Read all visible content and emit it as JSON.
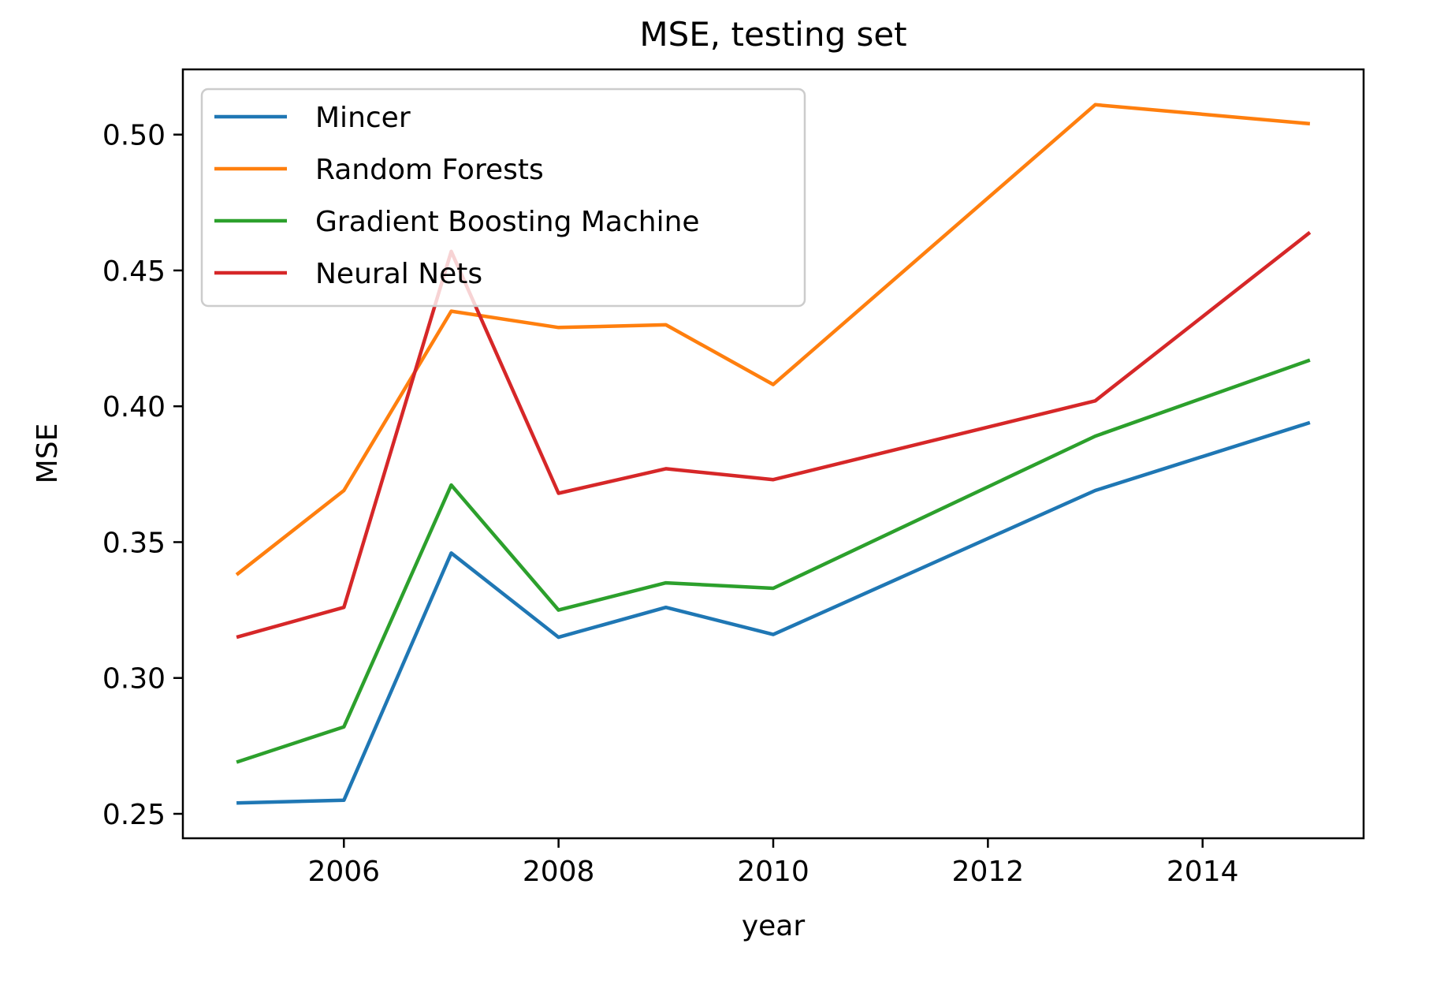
{
  "chart_data": {
    "type": "line",
    "title": "MSE, testing set",
    "xlabel": "year",
    "ylabel": "MSE",
    "x": [
      2005,
      2006,
      2007,
      2008,
      2009,
      2010,
      2013,
      2015
    ],
    "xlim": [
      2004.5,
      2015.5
    ],
    "ylim": [
      0.241,
      0.524
    ],
    "xticks": [
      2006,
      2008,
      2010,
      2012,
      2014
    ],
    "yticks": [
      0.25,
      0.3,
      0.35,
      0.4,
      0.45,
      0.5
    ],
    "ytick_labels": [
      "0.25",
      "0.30",
      "0.35",
      "0.40",
      "0.45",
      "0.50"
    ],
    "grid": false,
    "legend_position": "top-left",
    "series": [
      {
        "name": "Mincer",
        "color": "#1f77b4",
        "values": [
          0.254,
          0.255,
          0.346,
          0.315,
          0.326,
          0.316,
          0.369,
          0.394
        ]
      },
      {
        "name": "Random Forests",
        "color": "#ff7f0e",
        "values": [
          0.338,
          0.369,
          0.435,
          0.429,
          0.43,
          0.408,
          0.511,
          0.504
        ]
      },
      {
        "name": "Gradient Boosting Machine",
        "color": "#2ca02c",
        "values": [
          0.269,
          0.282,
          0.371,
          0.325,
          0.335,
          0.333,
          0.389,
          0.417
        ]
      },
      {
        "name": "Neural Nets",
        "color": "#d62728",
        "values": [
          0.315,
          0.326,
          0.457,
          0.368,
          0.377,
          0.373,
          0.402,
          0.464
        ]
      }
    ]
  }
}
